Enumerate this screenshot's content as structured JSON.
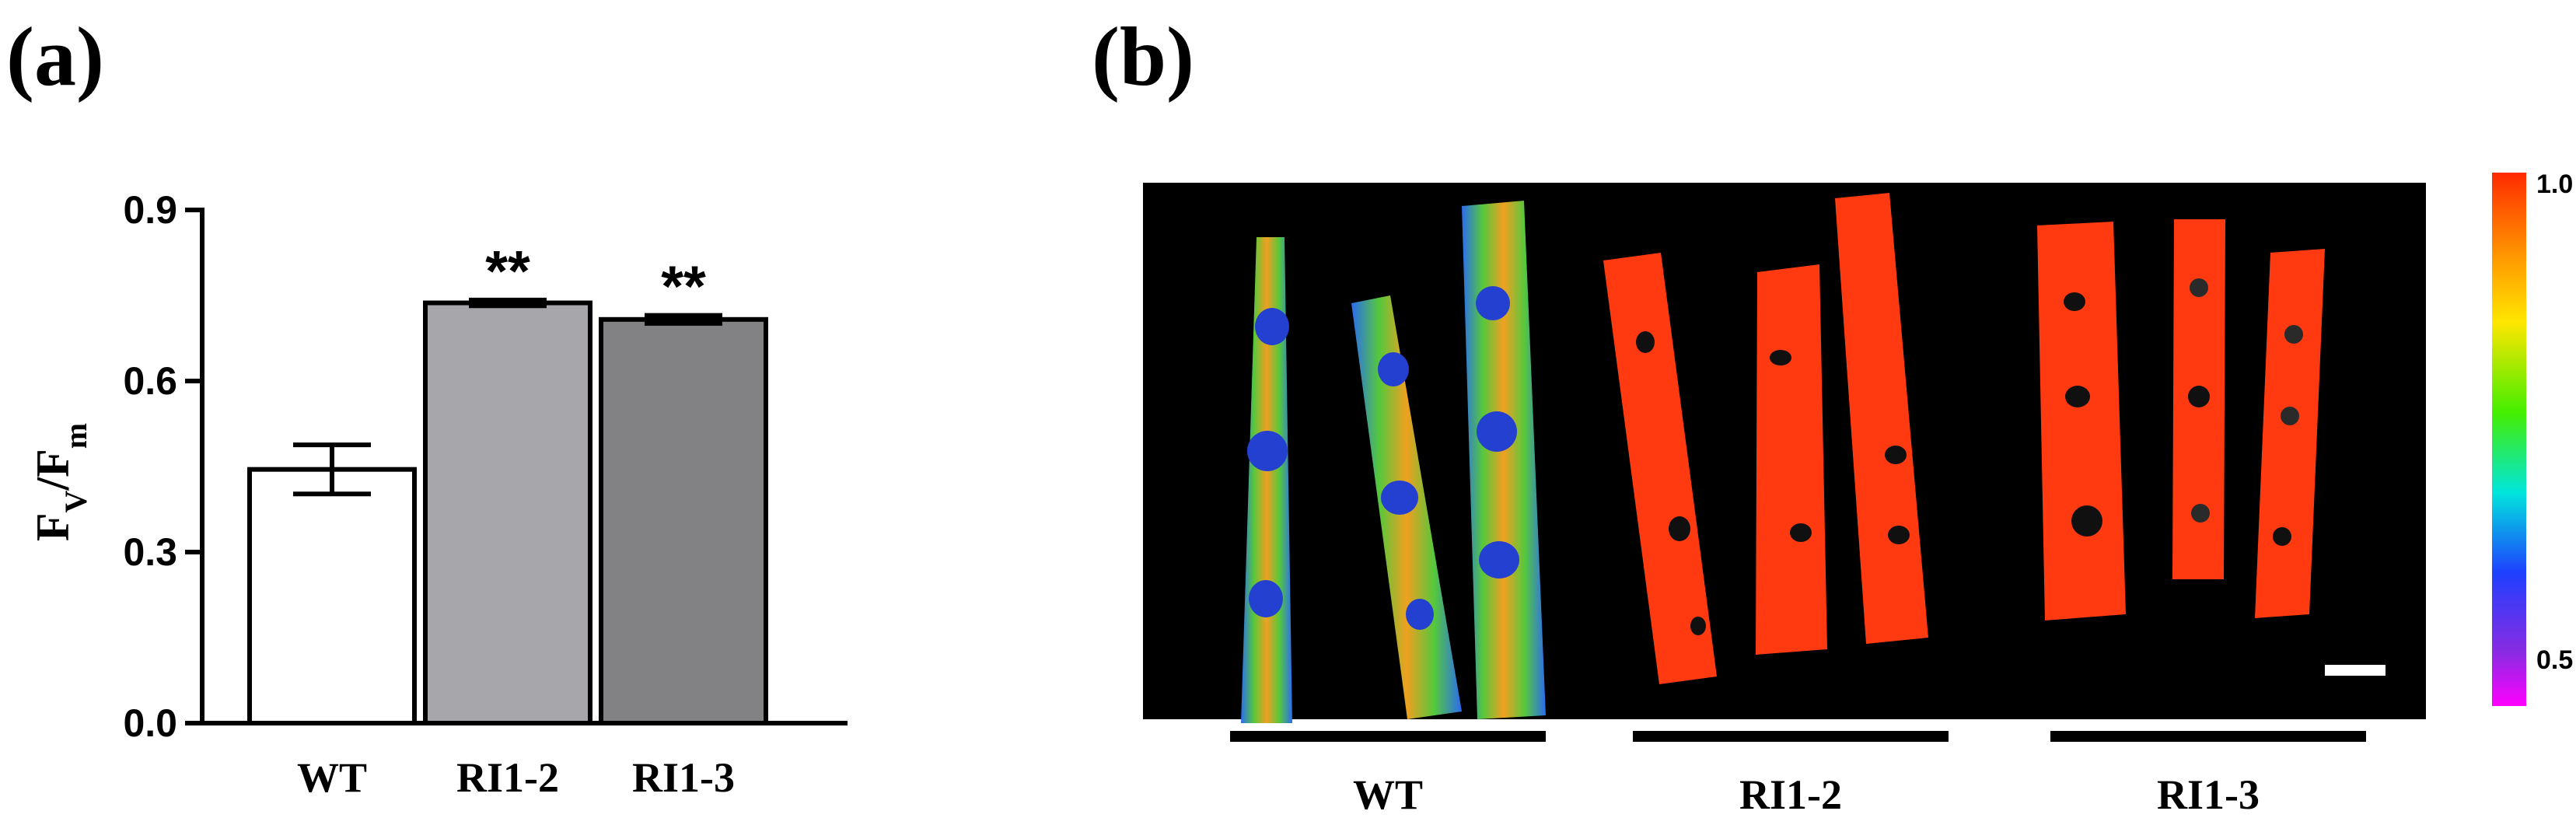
{
  "panels": {
    "a_label": "(a)",
    "b_label": "(b)"
  },
  "chart_data": {
    "type": "bar",
    "categories": [
      "WT",
      "RI1-2",
      "RI1-3"
    ],
    "values": [
      0.445,
      0.737,
      0.708
    ],
    "errors": [
      0.043,
      0.005,
      0.007
    ],
    "significance": [
      "",
      "**",
      "**"
    ],
    "bar_colors": [
      "#ffffff",
      "#a7a7ab",
      "#828285"
    ],
    "ylabel_main": "F",
    "ylabel_sub1": "V",
    "ylabel_sep": "/F",
    "ylabel_sub2": "m",
    "ylim": [
      0.0,
      0.9
    ],
    "yticks": [
      "0.0",
      "0.3",
      "0.6",
      "0.9"
    ]
  },
  "image_panel": {
    "groups": [
      "WT",
      "RI1-2",
      "RI1-3"
    ],
    "colorbar": {
      "max_label": "1.0",
      "min_label": "0.5"
    }
  }
}
